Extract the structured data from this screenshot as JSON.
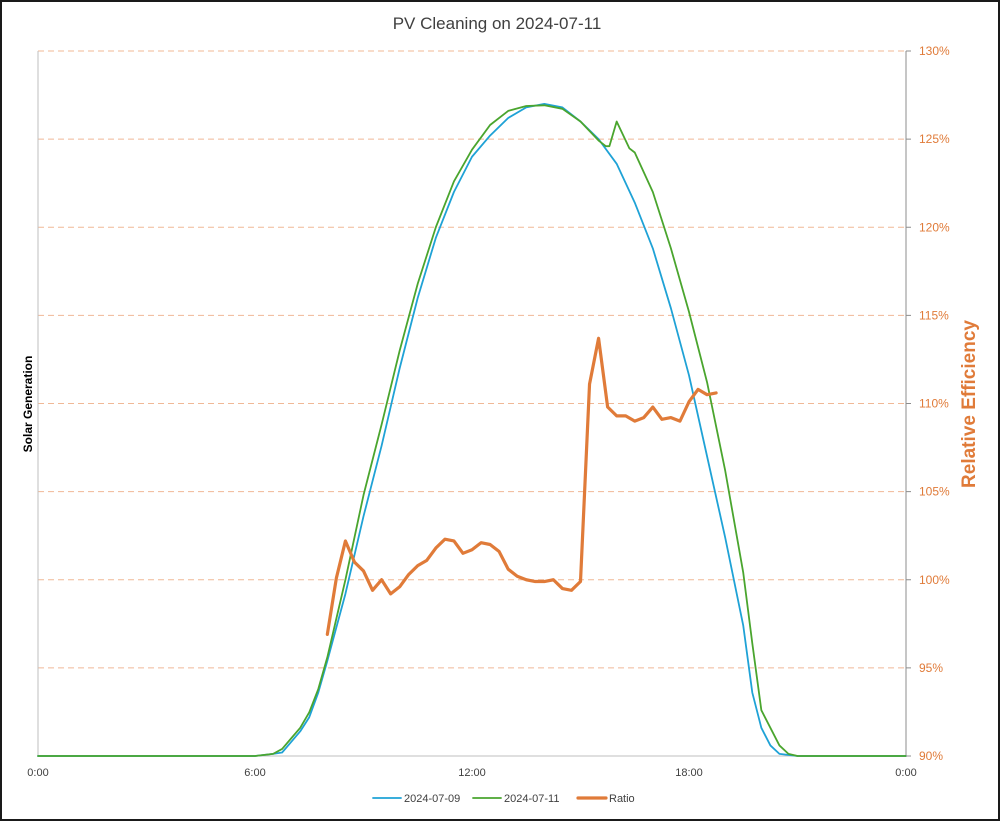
{
  "chart_data": {
    "type": "line",
    "title": "PV Cleaning on 2024-07-11",
    "ylabel_left": "Solar Generation",
    "ylabel_right": "Relative Efficiency",
    "x_ticks": [
      "0:00",
      "6:00",
      "12:00",
      "18:00",
      "0:00"
    ],
    "x_range_hours": [
      0,
      24
    ],
    "y_right_ticks": [
      "90%",
      "95%",
      "100%",
      "105%",
      "110%",
      "115%",
      "120%",
      "125%",
      "130%"
    ],
    "y_right_range_percent": [
      90,
      130
    ],
    "y_left_range": [
      0,
      100
    ],
    "grid": "horizontal dashed",
    "legend_position": "bottom",
    "colors": {
      "gen_0709": "#1fa2d6",
      "gen_0711": "#4aa52e",
      "ratio": "#e07b39",
      "grid": "#f0b896",
      "axis": "#bfbfbf"
    },
    "series": [
      {
        "name": "2024-07-09",
        "axis": "left",
        "points": [
          [
            0,
            0
          ],
          [
            6,
            0
          ],
          [
            6.5,
            0.3
          ],
          [
            6.75,
            0.5
          ],
          [
            7,
            2
          ],
          [
            7.25,
            3.5
          ],
          [
            7.5,
            5.5
          ],
          [
            7.75,
            9
          ],
          [
            8,
            13.5
          ],
          [
            8.5,
            23
          ],
          [
            9,
            34
          ],
          [
            9.5,
            44
          ],
          [
            10,
            55
          ],
          [
            10.5,
            65
          ],
          [
            11,
            73.5
          ],
          [
            11.5,
            80
          ],
          [
            12,
            85
          ],
          [
            12.5,
            88
          ],
          [
            13,
            90.5
          ],
          [
            13.5,
            92
          ],
          [
            14,
            92.5
          ],
          [
            14.5,
            92
          ],
          [
            15,
            90
          ],
          [
            15.5,
            87.5
          ],
          [
            16,
            84
          ],
          [
            16.5,
            78.5
          ],
          [
            17,
            72
          ],
          [
            17.5,
            63.5
          ],
          [
            18,
            54
          ],
          [
            18.5,
            42.5
          ],
          [
            19,
            31
          ],
          [
            19.5,
            18.5
          ],
          [
            19.75,
            9
          ],
          [
            20,
            4
          ],
          [
            20.25,
            1.5
          ],
          [
            20.5,
            0.3
          ],
          [
            21,
            0
          ],
          [
            24,
            0
          ]
        ]
      },
      {
        "name": "2024-07-11",
        "axis": "left",
        "points": [
          [
            0,
            0
          ],
          [
            6,
            0
          ],
          [
            6.5,
            0.3
          ],
          [
            6.75,
            1
          ],
          [
            7,
            2.5
          ],
          [
            7.25,
            4
          ],
          [
            7.5,
            6.2
          ],
          [
            7.75,
            9.5
          ],
          [
            8,
            14
          ],
          [
            8.5,
            25
          ],
          [
            9,
            37
          ],
          [
            9.5,
            47
          ],
          [
            10,
            57.5
          ],
          [
            10.5,
            67
          ],
          [
            11,
            75
          ],
          [
            11.5,
            81.5
          ],
          [
            12,
            86
          ],
          [
            12.5,
            89.5
          ],
          [
            13,
            91.5
          ],
          [
            13.5,
            92.2
          ],
          [
            14,
            92.3
          ],
          [
            14.5,
            91.8
          ],
          [
            15,
            90
          ],
          [
            15.5,
            87.3
          ],
          [
            15.7,
            86.5
          ],
          [
            15.8,
            86.5
          ],
          [
            16,
            90
          ],
          [
            16.35,
            86.2
          ],
          [
            16.5,
            85.6
          ],
          [
            17,
            80
          ],
          [
            17.5,
            72
          ],
          [
            18,
            63
          ],
          [
            18.5,
            53
          ],
          [
            19,
            40.5
          ],
          [
            19.5,
            26
          ],
          [
            19.75,
            16
          ],
          [
            20,
            6.5
          ],
          [
            20.25,
            4
          ],
          [
            20.5,
            1.5
          ],
          [
            20.75,
            0.3
          ],
          [
            21,
            0
          ],
          [
            24,
            0
          ]
        ]
      },
      {
        "name": "Ratio",
        "axis": "right",
        "points": [
          [
            8,
            96.9
          ],
          [
            8.25,
            100.1
          ],
          [
            8.5,
            102.2
          ],
          [
            8.75,
            101
          ],
          [
            9,
            100.5
          ],
          [
            9.25,
            99.4
          ],
          [
            9.5,
            100
          ],
          [
            9.75,
            99.2
          ],
          [
            10,
            99.6
          ],
          [
            10.25,
            100.3
          ],
          [
            10.5,
            100.8
          ],
          [
            10.75,
            101.1
          ],
          [
            11,
            101.8
          ],
          [
            11.25,
            102.3
          ],
          [
            11.5,
            102.2
          ],
          [
            11.75,
            101.5
          ],
          [
            12,
            101.7
          ],
          [
            12.25,
            102.1
          ],
          [
            12.5,
            102
          ],
          [
            12.75,
            101.6
          ],
          [
            13,
            100.6
          ],
          [
            13.25,
            100.2
          ],
          [
            13.5,
            100
          ],
          [
            13.75,
            99.9
          ],
          [
            14,
            99.9
          ],
          [
            14.25,
            100
          ],
          [
            14.5,
            99.5
          ],
          [
            14.75,
            99.4
          ],
          [
            15,
            99.9
          ],
          [
            15.25,
            111.1
          ],
          [
            15.5,
            113.7
          ],
          [
            15.75,
            109.8
          ],
          [
            16,
            109.3
          ],
          [
            16.25,
            109.3
          ],
          [
            16.5,
            109
          ],
          [
            16.75,
            109.2
          ],
          [
            17,
            109.8
          ],
          [
            17.25,
            109.1
          ],
          [
            17.5,
            109.2
          ],
          [
            17.75,
            109
          ],
          [
            18,
            110.1
          ],
          [
            18.25,
            110.8
          ],
          [
            18.5,
            110.5
          ],
          [
            18.75,
            110.6
          ]
        ]
      }
    ]
  }
}
